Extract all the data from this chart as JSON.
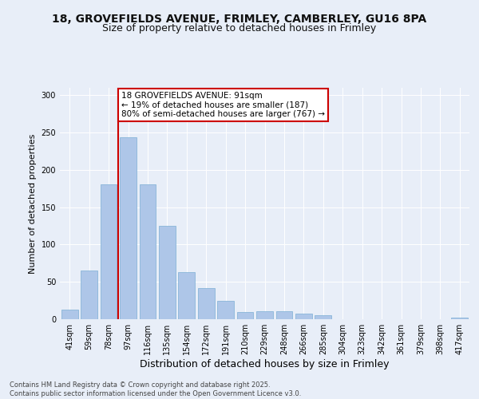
{
  "title_line1": "18, GROVEFIELDS AVENUE, FRIMLEY, CAMBERLEY, GU16 8PA",
  "title_line2": "Size of property relative to detached houses in Frimley",
  "xlabel": "Distribution of detached houses by size in Frimley",
  "ylabel": "Number of detached properties",
  "categories": [
    "41sqm",
    "59sqm",
    "78sqm",
    "97sqm",
    "116sqm",
    "135sqm",
    "154sqm",
    "172sqm",
    "191sqm",
    "210sqm",
    "229sqm",
    "248sqm",
    "266sqm",
    "285sqm",
    "304sqm",
    "323sqm",
    "342sqm",
    "361sqm",
    "379sqm",
    "398sqm",
    "417sqm"
  ],
  "values": [
    13,
    65,
    181,
    244,
    181,
    125,
    63,
    42,
    25,
    10,
    11,
    11,
    8,
    5,
    0,
    0,
    0,
    0,
    0,
    0,
    2
  ],
  "bar_color": "#aec6e8",
  "bar_edge_color": "#7bafd4",
  "vline_x_index": 3,
  "vline_color": "#cc0000",
  "annotation_text": "18 GROVEFIELDS AVENUE: 91sqm\n← 19% of detached houses are smaller (187)\n80% of semi-detached houses are larger (767) →",
  "annotation_box_color": "#ffffff",
  "annotation_box_edge": "#cc0000",
  "ylim": [
    0,
    310
  ],
  "yticks": [
    0,
    50,
    100,
    150,
    200,
    250,
    300
  ],
  "background_color": "#e8eef8",
  "plot_bg_color": "#e8eef8",
  "footer_text": "Contains HM Land Registry data © Crown copyright and database right 2025.\nContains public sector information licensed under the Open Government Licence v3.0.",
  "title_fontsize": 10,
  "subtitle_fontsize": 9,
  "tick_fontsize": 7,
  "ylabel_fontsize": 8,
  "xlabel_fontsize": 9,
  "annotation_fontsize": 7.5,
  "footer_fontsize": 6
}
